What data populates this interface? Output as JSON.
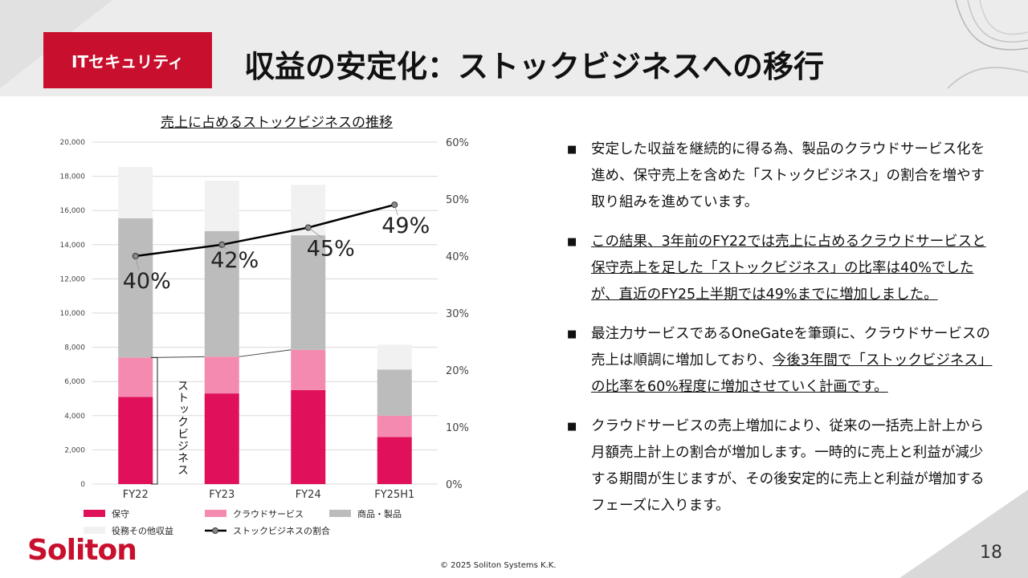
{
  "header": {
    "badge": "ITセキュリティ",
    "title": "収益の安定化：ストックビジネスへの移行"
  },
  "chart_data": {
    "type": "bar",
    "stacked": true,
    "title": "売上に占めるストックビジネスの推移",
    "categories": [
      "FY22",
      "FY23",
      "FY24",
      "FY25H1"
    ],
    "ylim": [
      0,
      20000
    ],
    "y_ticks": [
      "0",
      "2,000",
      "4,000",
      "6,000",
      "8,000",
      "10,000",
      "12,000",
      "14,000",
      "16,000",
      "18,000",
      "20,000"
    ],
    "y2lim": [
      0,
      60
    ],
    "y2_ticks": [
      "0%",
      "10%",
      "20%",
      "30%",
      "40%",
      "50%",
      "60%"
    ],
    "series": [
      {
        "name": "保守",
        "color": "#e0105a",
        "values": [
          5100,
          5300,
          5500,
          2750
        ]
      },
      {
        "name": "クラウドサービス",
        "color": "#f48ab0",
        "values": [
          2300,
          2150,
          2350,
          1250
        ]
      },
      {
        "name": "商品・製品",
        "color": "#bcbcbc",
        "values": [
          8150,
          7350,
          6700,
          2700
        ]
      },
      {
        "name": "役務その他収益",
        "color": "#f1f1f1",
        "values": [
          3000,
          2950,
          2950,
          1450
        ]
      }
    ],
    "line": {
      "name": "ストックビジネスの割合",
      "color": "#000000",
      "values": [
        40,
        42,
        45,
        49
      ],
      "labels": [
        "40%",
        "42%",
        "45%",
        "49%"
      ]
    },
    "bracket_label": "ストックビジネス",
    "legend": "bottom"
  },
  "bullets": [
    {
      "text": "安定した収益を継続的に得る為、製品のクラウドサービス化を進め、保守売上を含めた「ストックビジネス」の割合を増やす取り組みを進めています。"
    },
    {
      "text": "この結果、3年前のFY22では売上に占めるクラウドサービスと保守売上を足した「ストックビジネス」の比率は40%でしたが、直近のFY25上半期では49%までに増加しました。"
    },
    {
      "text_plain": "最注力サービスであるOneGateを筆頭に、クラウドサービスの売上は順調に増加しており、",
      "text_underline": "今後3年間で「ストックビジネス」の比率を60%程度に増加させていく計画です。"
    },
    {
      "text": "クラウドサービスの売上増加により、従来の一括売上計上から月額売上計上の割合が増加します。一時的に売上と利益が減少する期間が生じますが、その後安定的に売上と利益が増加するフェーズに入ります。"
    }
  ],
  "bullet_mark": "■",
  "footer": {
    "logo": "Soliton",
    "copyright": "© 2025 Soliton Systems K.K.",
    "page": "18"
  }
}
